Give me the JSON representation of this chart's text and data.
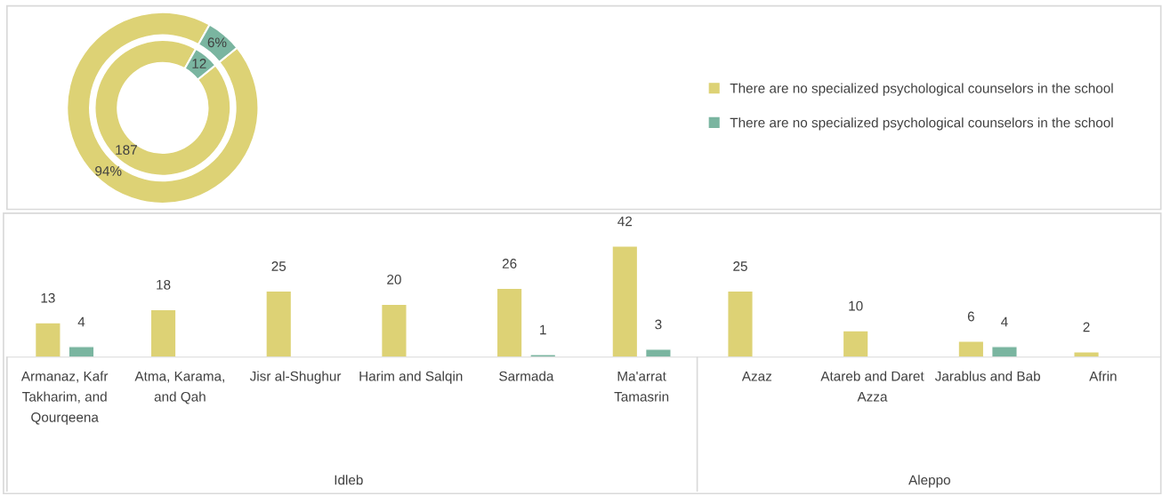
{
  "chart_data": [
    {
      "type": "donut",
      "categories": [
        "There are no specialized psychological counselors in the school",
        "There are no specialized psychological counselors in the school"
      ],
      "colors": [
        "#ddd275",
        "#7ab5a0"
      ],
      "legend": "right",
      "series": [
        {
          "values": [
            94,
            6
          ],
          "value_labels": [
            "94%",
            "6%"
          ]
        },
        {
          "values": [
            187,
            12
          ],
          "value_labels": [
            "187",
            "12"
          ]
        }
      ]
    },
    {
      "type": "bar",
      "categories": [
        "Armanaz, Kafr Takharim, and Qourqeena",
        "Atma, Karama, and Qah",
        "Jisr al-Shughur",
        "Harim and Salqin",
        "Sarmada",
        "Ma'arrat Tamasrin",
        "Azaz",
        "Atareb and Daret Azza",
        "Jarablus and Bab",
        "Afrin"
      ],
      "data_labels": true,
      "series": [
        {
          "color": "#ddd275",
          "values": [
            13,
            18,
            25,
            20,
            26,
            42,
            25,
            10,
            6,
            2
          ]
        },
        {
          "color": "#7ab5a0",
          "values": [
            4,
            null,
            null,
            null,
            1,
            3,
            null,
            null,
            4,
            null
          ]
        }
      ],
      "annotations": [
        "Idleb",
        "Aleppo"
      ]
    }
  ]
}
